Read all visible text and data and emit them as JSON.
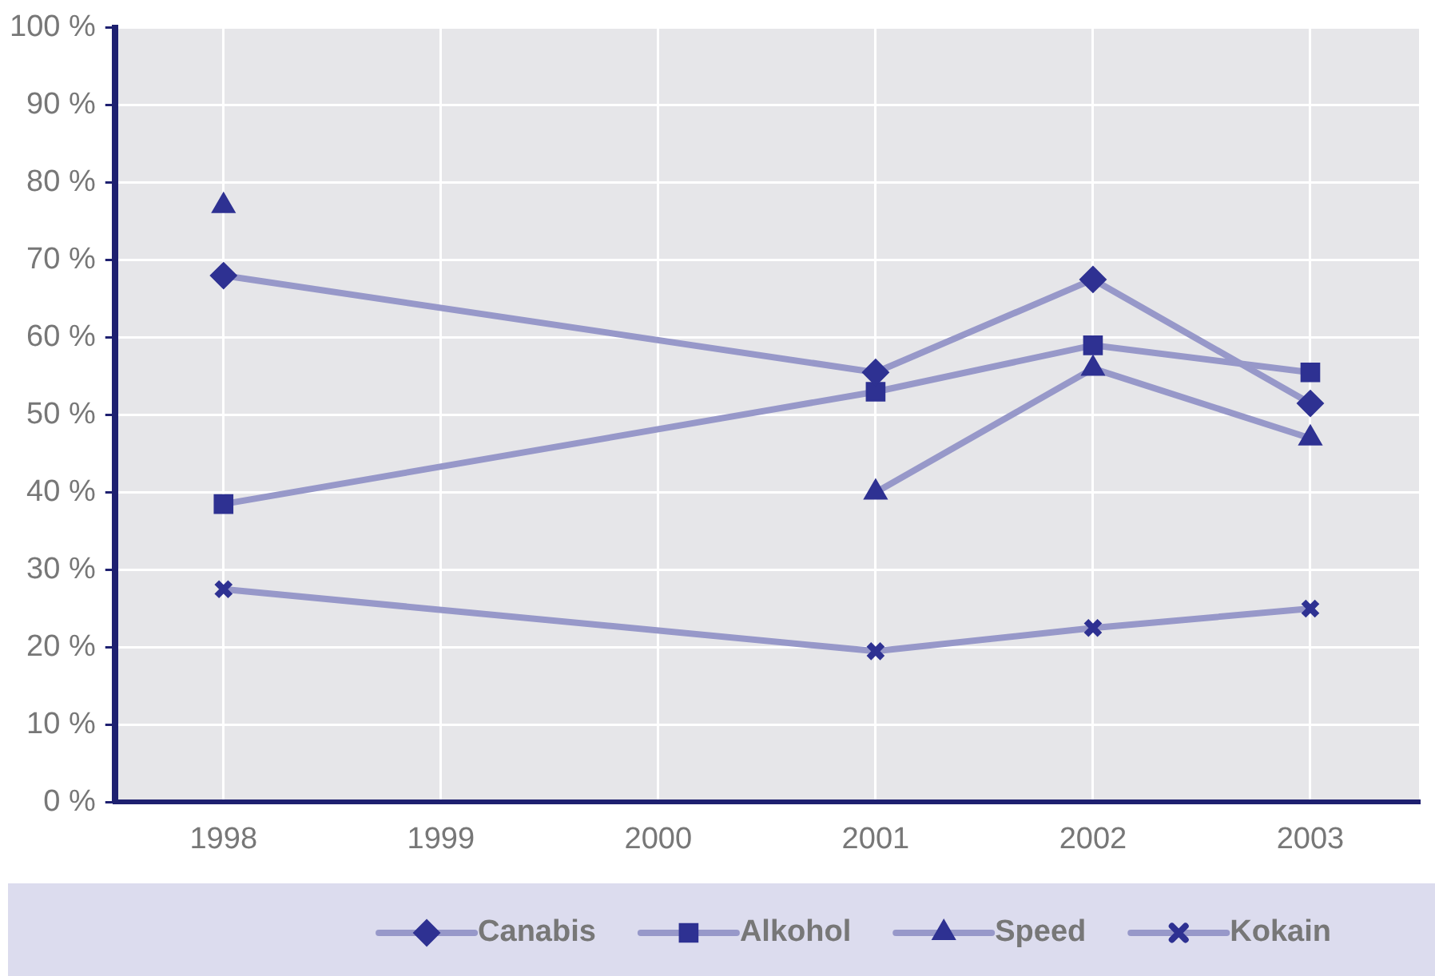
{
  "chart_data": {
    "type": "line",
    "categories": [
      "1998",
      "1999",
      "2000",
      "2001",
      "2002",
      "2003"
    ],
    "series": [
      {
        "name": "Canabis",
        "color": "#2e3192",
        "marker": "diamond",
        "values": [
          68,
          null,
          null,
          55.5,
          67.5,
          51.5
        ]
      },
      {
        "name": "Alkohol",
        "color": "#2e3192",
        "marker": "square",
        "values": [
          38.5,
          null,
          null,
          53,
          59,
          55.5
        ]
      },
      {
        "name": "Speed",
        "color": "#2e3192",
        "marker": "triangle",
        "values": [
          null,
          null,
          null,
          40,
          56,
          47
        ]
      },
      {
        "color": "#2e3192",
        "marker": "triangle",
        "values": [
          77,
          null,
          null,
          null,
          null,
          null
        ]
      },
      {
        "name": "Kokain",
        "color": "#2e3192",
        "marker": "cross",
        "values": [
          27.5,
          null,
          null,
          19.5,
          22.5,
          25
        ]
      }
    ],
    "ylim": [
      0,
      100
    ],
    "yticks": [
      {
        "value": 0,
        "label": "0 %"
      },
      {
        "value": 10,
        "label": "10 %"
      },
      {
        "value": 20,
        "label": "20 %"
      },
      {
        "value": 30,
        "label": "30 %"
      },
      {
        "value": 40,
        "label": "40 %"
      },
      {
        "value": 50,
        "label": "50 %"
      },
      {
        "value": 60,
        "label": "60 %"
      },
      {
        "value": 70,
        "label": "70 %"
      },
      {
        "value": 80,
        "label": "80 %"
      },
      {
        "value": 90,
        "label": "90 %"
      },
      {
        "value": 100,
        "label": "100 %"
      }
    ],
    "grid": true,
    "legend": "bottom"
  }
}
